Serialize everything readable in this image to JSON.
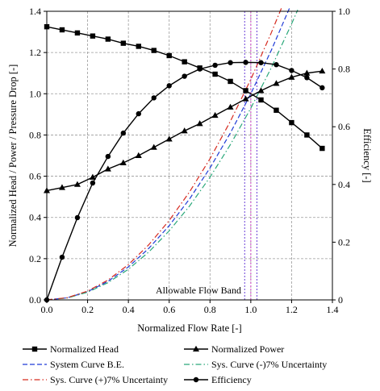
{
  "chart_data": {
    "type": "line",
    "xlabel": "Normalized Flow Rate [-]",
    "ylabel": "Normalized Head / Power / Pressure Drop [-]",
    "y2label": "Efficiency [-]",
    "xlim": [
      0,
      1.4
    ],
    "ylim": [
      0,
      1.4
    ],
    "y2lim": [
      0,
      1.0
    ],
    "xticks": [
      "0.0",
      "0.2",
      "0.4",
      "0.6",
      "0.8",
      "1.0",
      "1.2",
      "1.4"
    ],
    "yticks": [
      "0.0",
      "0.2",
      "0.4",
      "0.6",
      "0.8",
      "1.0",
      "1.2",
      "1.4"
    ],
    "y2ticks": [
      "0",
      "0.2",
      "0.4",
      "0.6",
      "0.8",
      "1.0"
    ],
    "grid": true,
    "legend_position": "bottom",
    "annotation": "Allowable Flow Band",
    "flow_band": [
      0.97,
      1.03
    ],
    "series": [
      {
        "name": "Normalized Head",
        "axis": "left",
        "color": "#000000",
        "style": "solid",
        "marker": "square",
        "x": [
          0.0,
          0.075,
          0.15,
          0.225,
          0.3,
          0.375,
          0.45,
          0.525,
          0.6,
          0.675,
          0.75,
          0.825,
          0.9,
          0.975,
          1.05,
          1.125,
          1.2,
          1.275,
          1.35
        ],
        "y": [
          1.325,
          1.31,
          1.295,
          1.28,
          1.265,
          1.245,
          1.23,
          1.21,
          1.185,
          1.155,
          1.125,
          1.095,
          1.06,
          1.015,
          0.97,
          0.92,
          0.86,
          0.8,
          0.735
        ]
      },
      {
        "name": "Normalized Power",
        "axis": "left",
        "color": "#000000",
        "style": "solid",
        "marker": "triangle",
        "x": [
          0.0,
          0.075,
          0.15,
          0.225,
          0.3,
          0.375,
          0.45,
          0.525,
          0.6,
          0.675,
          0.75,
          0.825,
          0.9,
          0.975,
          1.05,
          1.125,
          1.2,
          1.275,
          1.35
        ],
        "y": [
          0.53,
          0.545,
          0.56,
          0.595,
          0.635,
          0.665,
          0.7,
          0.74,
          0.78,
          0.82,
          0.855,
          0.895,
          0.935,
          0.975,
          1.015,
          1.05,
          1.08,
          1.1,
          1.11
        ]
      },
      {
        "name": "System Curve B.E.",
        "axis": "left",
        "color": "#1f3bd6",
        "style": "dash",
        "marker": "none",
        "x": [
          0.0,
          0.1,
          0.2,
          0.3,
          0.4,
          0.5,
          0.6,
          0.7,
          0.8,
          0.9,
          1.0,
          1.1,
          1.19
        ],
        "y": [
          0.0,
          0.01,
          0.04,
          0.09,
          0.16,
          0.25,
          0.36,
          0.49,
          0.64,
          0.81,
          1.0,
          1.21,
          1.416
        ]
      },
      {
        "name": "Sys. Curve (-)7% Uncertainty",
        "axis": "left",
        "color": "#2aa87a",
        "style": "dashdot",
        "marker": "none",
        "x": [
          0.0,
          0.1,
          0.2,
          0.3,
          0.4,
          0.5,
          0.6,
          0.7,
          0.8,
          0.9,
          1.0,
          1.1,
          1.2,
          1.23
        ],
        "y": [
          0.0,
          0.0093,
          0.0372,
          0.0837,
          0.1488,
          0.2325,
          0.3348,
          0.4557,
          0.5952,
          0.7533,
          0.93,
          1.1253,
          1.3392,
          1.407
        ]
      },
      {
        "name": "Sys. Curve (+)7% Uncertainty",
        "axis": "left",
        "color": "#d62a1f",
        "style": "dashdot",
        "marker": "none",
        "x": [
          0.0,
          0.1,
          0.2,
          0.3,
          0.4,
          0.5,
          0.6,
          0.7,
          0.8,
          0.9,
          1.0,
          1.1,
          1.15
        ],
        "y": [
          0.0,
          0.0107,
          0.0428,
          0.0963,
          0.1712,
          0.2675,
          0.3852,
          0.5243,
          0.6848,
          0.8667,
          1.07,
          1.2947,
          1.415
        ]
      },
      {
        "name": "Efficiency",
        "axis": "right",
        "color": "#000000",
        "style": "solid",
        "marker": "circle",
        "x": [
          0.0,
          0.075,
          0.15,
          0.225,
          0.3,
          0.375,
          0.45,
          0.525,
          0.6,
          0.675,
          0.75,
          0.825,
          0.9,
          0.975,
          1.05,
          1.125,
          1.2,
          1.275,
          1.35
        ],
        "y": [
          0.0,
          0.148,
          0.285,
          0.405,
          0.497,
          0.578,
          0.645,
          0.7,
          0.742,
          0.775,
          0.8,
          0.813,
          0.822,
          0.823,
          0.822,
          0.815,
          0.795,
          0.77,
          0.735
        ]
      }
    ]
  }
}
